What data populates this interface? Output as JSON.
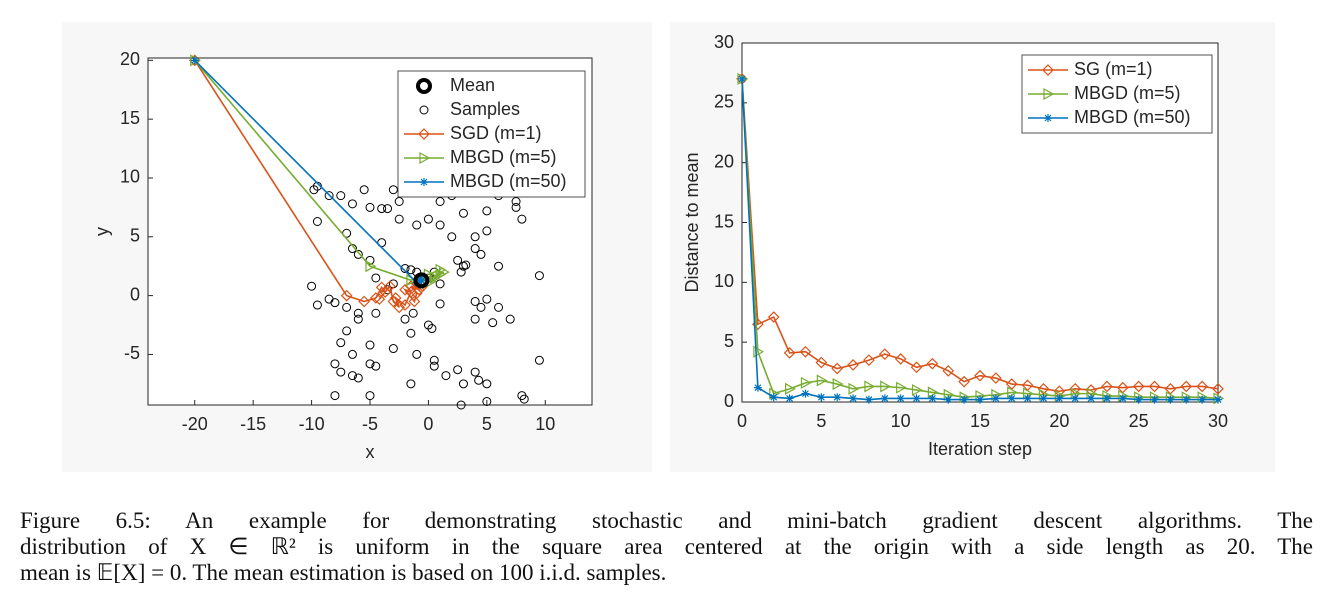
{
  "chart_data": [
    {
      "type": "scatter",
      "xlabel": "x",
      "ylabel": "y",
      "xlim": [
        -24,
        14
      ],
      "ylim": [
        -9.3,
        20.2
      ],
      "xticks": [
        -20,
        -15,
        -10,
        -5,
        0,
        5,
        10
      ],
      "yticks": [
        -5,
        0,
        5,
        10,
        15,
        20
      ],
      "legend": "upper right",
      "series": [
        {
          "name": "Mean",
          "color": "#000000",
          "marker": "circle-bold",
          "line": false,
          "x": [
            -0.6
          ],
          "y": [
            1.3
          ]
        },
        {
          "name": "Samples",
          "color": "#000000",
          "marker": "circle",
          "line": false,
          "x": [
            -9.5,
            -9.8,
            -8.5,
            -7.5,
            -5.5,
            -3,
            -2.5,
            -1,
            2,
            4,
            6,
            7.5,
            7.5,
            5,
            3,
            1,
            0,
            -2.5,
            -4,
            -3.5,
            -5,
            -6.5,
            -9.5,
            -7,
            -6.5,
            -6,
            -4,
            -5,
            -1,
            1,
            2,
            4,
            5,
            4,
            4.5,
            2.5,
            3,
            2.8,
            6,
            8,
            9.5,
            0.5,
            -1.5,
            -1,
            0,
            1,
            -3,
            -4.5,
            -3.5,
            -10,
            -9.5,
            -8.5,
            -8,
            -7,
            -6,
            -2,
            -1.3,
            1,
            0,
            0.3,
            -1.5,
            -4.5,
            4,
            5,
            4.5,
            6,
            4,
            5.5,
            7,
            -7,
            -7.5,
            -6.5,
            -5,
            -5,
            -4.5,
            -3,
            -8,
            -7.5,
            -6.5,
            -6,
            -8,
            -5,
            -1.5,
            0.5,
            1.5,
            2.5,
            3,
            4,
            4.3,
            5,
            2.8,
            5,
            8,
            8.2,
            9.5,
            -1,
            -2,
            0.5,
            -6,
            3.2
          ],
          "y": [
            9.3,
            9,
            8.5,
            8.5,
            9,
            9,
            8,
            9,
            8.5,
            9,
            8.5,
            8,
            7.5,
            7.2,
            7,
            8,
            6.5,
            6.5,
            7.4,
            7.4,
            7.5,
            7.8,
            6.3,
            5.3,
            4,
            3.5,
            4.5,
            3,
            6,
            6,
            5,
            5,
            5.5,
            4,
            3.5,
            3,
            2.5,
            2,
            2.5,
            6.5,
            1.7,
            2,
            2.2,
            2,
            1.5,
            1,
            1,
            1.5,
            0.5,
            0.8,
            -0.8,
            -0.3,
            -0.6,
            -1,
            -1.5,
            -2,
            -1.5,
            -0.7,
            -2.5,
            -2.8,
            -3.2,
            -1.5,
            -0.5,
            -0.3,
            -1,
            -1,
            -2,
            -2.3,
            -2,
            -3,
            -4,
            -5,
            -4.2,
            -5.8,
            -6,
            -4.5,
            -5.8,
            -6.5,
            -6.8,
            -7,
            -8.5,
            -8.5,
            -7.5,
            -5.5,
            -6.8,
            -6.3,
            -7.5,
            -6.5,
            -7.2,
            -7.5,
            -9.3,
            -9,
            -8.5,
            -8.8,
            -5.5,
            -5,
            2.3,
            -6,
            -2,
            2.6
          ]
        },
        {
          "name": "SGD (m=1)",
          "color": "#d95319",
          "marker": "diamond",
          "line": true,
          "x": [
            -20,
            -7,
            -5.5,
            -4.5,
            -4,
            -3.7,
            -4.2,
            -3.3,
            -3,
            -2.5,
            -2.8,
            -2,
            -1.5,
            -2,
            -1.2,
            -1,
            -1.5,
            -0.8,
            -1,
            -0.5,
            -0.8
          ],
          "y": [
            20,
            0,
            -0.5,
            -0.2,
            0.7,
            0.3,
            -0.3,
            0.8,
            -0.5,
            -1,
            -0.2,
            -0.8,
            0.3,
            0.5,
            -0.5,
            0.2,
            0.8,
            0.5,
            1,
            0.8,
            1.3
          ]
        },
        {
          "name": "MBGD (m=5)",
          "color": "#77ac30",
          "marker": "triangle",
          "line": true,
          "x": [
            -20,
            -5,
            -1.5,
            0,
            1,
            0.5,
            1.3,
            0.2,
            1,
            -0.5
          ],
          "y": [
            20,
            2.5,
            1.3,
            1.8,
            2.2,
            1.5,
            2,
            1.2,
            1.8,
            1.2
          ]
        },
        {
          "name": "MBGD (m=50)",
          "color": "#0072bd",
          "marker": "asterisk",
          "line": true,
          "x": [
            -20,
            -1,
            -0.6,
            -0.8,
            -0.7
          ],
          "y": [
            20,
            1.1,
            1.3,
            1.2,
            1.4
          ]
        }
      ]
    },
    {
      "type": "line",
      "xlabel": "Iteration step",
      "ylabel": "Distance to mean",
      "xlim": [
        0,
        30
      ],
      "ylim": [
        0,
        30
      ],
      "xticks": [
        0,
        5,
        10,
        15,
        20,
        25,
        30
      ],
      "yticks": [
        0,
        5,
        10,
        15,
        20,
        25,
        30
      ],
      "legend": "upper right",
      "x": [
        0,
        1,
        2,
        3,
        4,
        5,
        6,
        7,
        8,
        9,
        10,
        11,
        12,
        13,
        14,
        15,
        16,
        17,
        18,
        19,
        20,
        21,
        22,
        23,
        24,
        25,
        26,
        27,
        28,
        29,
        30
      ],
      "series": [
        {
          "name": "SG (m=1)",
          "color": "#d95319",
          "marker": "diamond",
          "line": true,
          "values": [
            27,
            6.5,
            7.1,
            4.1,
            4.2,
            3.3,
            2.8,
            3.1,
            3.5,
            4.0,
            3.6,
            2.9,
            3.2,
            2.6,
            1.7,
            2.2,
            2.0,
            1.5,
            1.4,
            1.1,
            0.9,
            1.1,
            1.0,
            1.3,
            1.2,
            1.3,
            1.3,
            1.1,
            1.3,
            1.3,
            1.1
          ]
        },
        {
          "name": "MBGD (m=5)",
          "color": "#77ac30",
          "marker": "triangle",
          "line": true,
          "values": [
            27,
            4.2,
            0.7,
            1.1,
            1.6,
            1.8,
            1.5,
            1.1,
            1.3,
            1.3,
            1.2,
            1.0,
            0.8,
            0.6,
            0.4,
            0.5,
            0.6,
            0.8,
            0.7,
            0.6,
            0.5,
            0.7,
            0.7,
            0.5,
            0.5,
            0.4,
            0.4,
            0.4,
            0.4,
            0.4,
            0.3
          ]
        },
        {
          "name": "MBGD (m=50)",
          "color": "#0072bd",
          "marker": "asterisk",
          "line": true,
          "values": [
            27,
            1.2,
            0.4,
            0.3,
            0.7,
            0.4,
            0.4,
            0.3,
            0.2,
            0.3,
            0.3,
            0.3,
            0.3,
            0.2,
            0.2,
            0.2,
            0.3,
            0.3,
            0.3,
            0.3,
            0.3,
            0.3,
            0.3,
            0.3,
            0.3,
            0.2,
            0.2,
            0.2,
            0.2,
            0.2,
            0.2
          ]
        }
      ]
    }
  ],
  "caption": [
    "Figure 6.5: An example for demonstrating stochastic and mini-batch gradient descent algorithms. The",
    "distribution of X ∈ ℝ² is uniform in the square area centered at the origin with a side length as 20. The",
    "mean is 𝔼[X] = 0. The mean estimation is based on 100 i.i.d. samples."
  ]
}
